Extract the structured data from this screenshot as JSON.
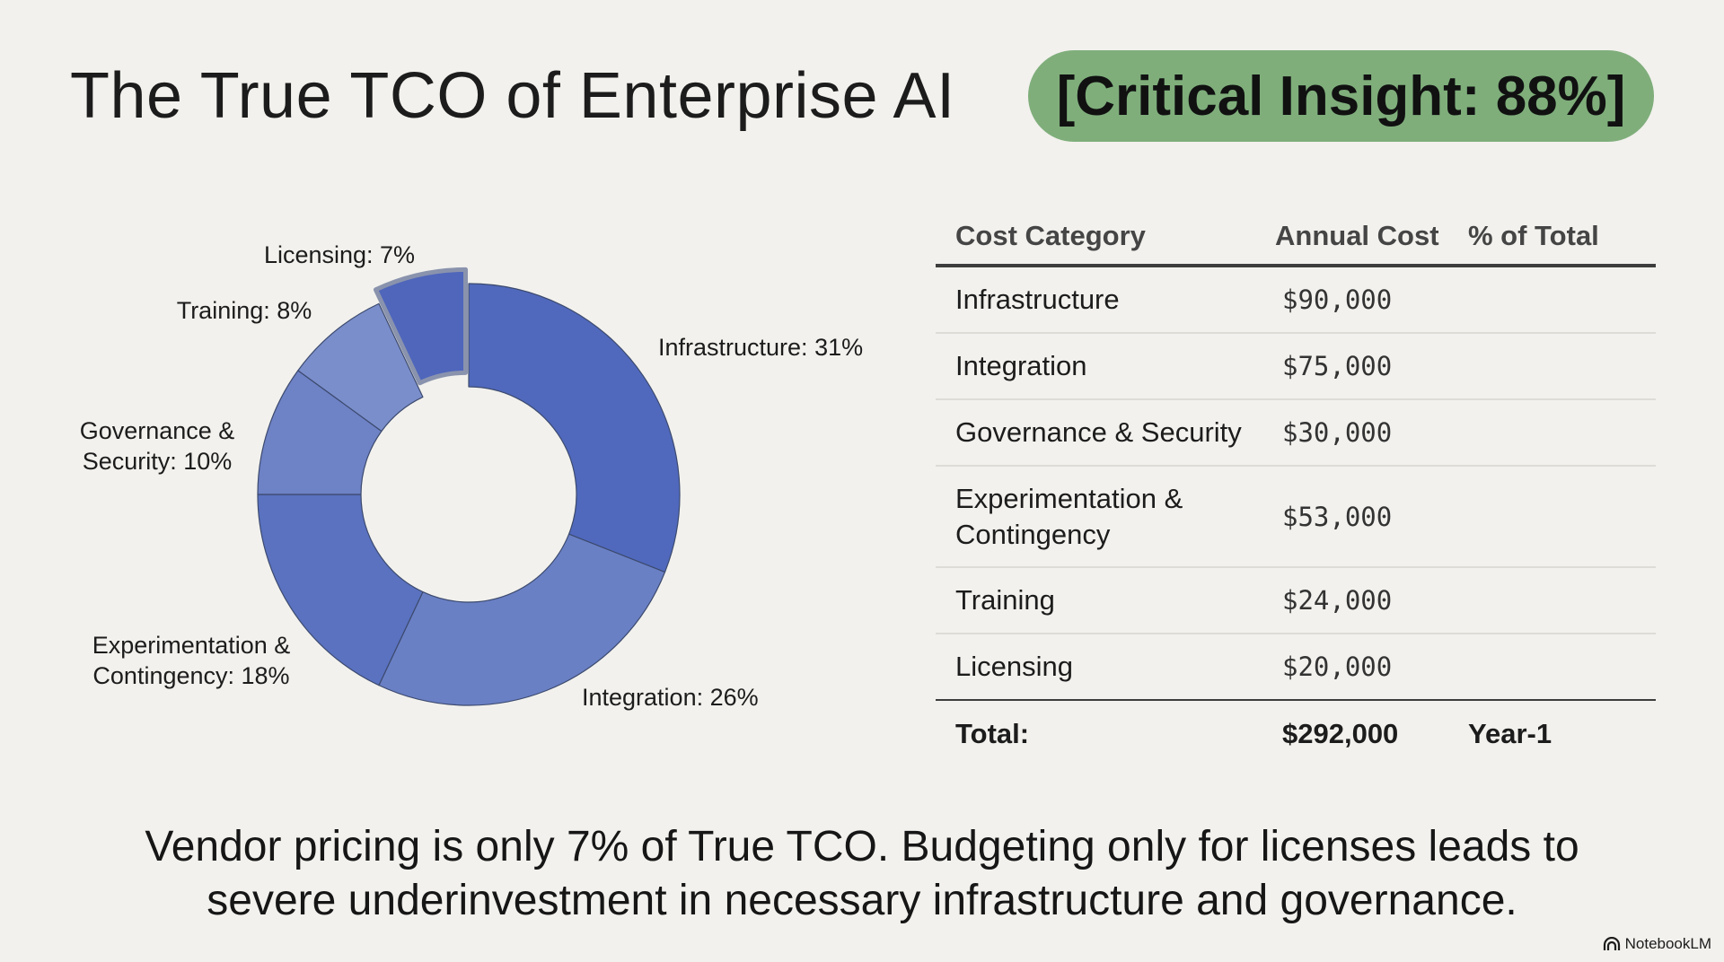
{
  "page": {
    "title": "The True TCO of Enterprise AI",
    "insight_badge": "[Critical Insight: 88%]",
    "footer_line1": "Vendor pricing is only 7% of True TCO. Budgeting only for licenses leads to",
    "footer_line2": "severe underinvestment in necessary infrastructure and governance.",
    "brand": "NotebookLM"
  },
  "colors": {
    "background": "#f2f1ed",
    "badge": "#7fae7b",
    "slice_dark": "#5069bd",
    "slice_mid": "#6a80c5",
    "slice_light": "#7a8ecb",
    "slice_stroke": "#3c4a6e"
  },
  "chart_data": {
    "type": "pie",
    "style": "donut",
    "highlighted": "Licensing",
    "slices": [
      {
        "name": "Infrastructure",
        "value": 31,
        "label": "Infrastructure: 31%",
        "color": "#5069bd"
      },
      {
        "name": "Integration",
        "value": 26,
        "label": "Integration: 26%",
        "color": "#6a80c5"
      },
      {
        "name": "Experimentation & Contingency",
        "value": 18,
        "label": "Experimentation & Contingency: 18%",
        "color": "#5a72c0"
      },
      {
        "name": "Governance & Security",
        "value": 10,
        "label": "Governance & Security: 10%",
        "color": "#6e82c6"
      },
      {
        "name": "Training",
        "value": 8,
        "label": "Training: 8%",
        "color": "#7a8ecb"
      },
      {
        "name": "Licensing",
        "value": 7,
        "label": "Licensing: 7%",
        "color": "#4f66bb"
      }
    ]
  },
  "table": {
    "headers": [
      "Cost Category",
      "Annual Cost",
      "% of Total"
    ],
    "rows": [
      {
        "category": "Infrastructure",
        "cost": "$90,000",
        "pct": ""
      },
      {
        "category": "Integration",
        "cost": "$75,000",
        "pct": ""
      },
      {
        "category": "Governance & Security",
        "cost": "$30,000",
        "pct": ""
      },
      {
        "category": "Experimentation & Contingency",
        "cost": "$53,000",
        "pct": ""
      },
      {
        "category": "Training",
        "cost": "$24,000",
        "pct": ""
      },
      {
        "category": "Licensing",
        "cost": "$20,000",
        "pct": ""
      }
    ],
    "total": {
      "label": "Total:",
      "cost": "$292,000",
      "pct": "Year-1"
    }
  }
}
